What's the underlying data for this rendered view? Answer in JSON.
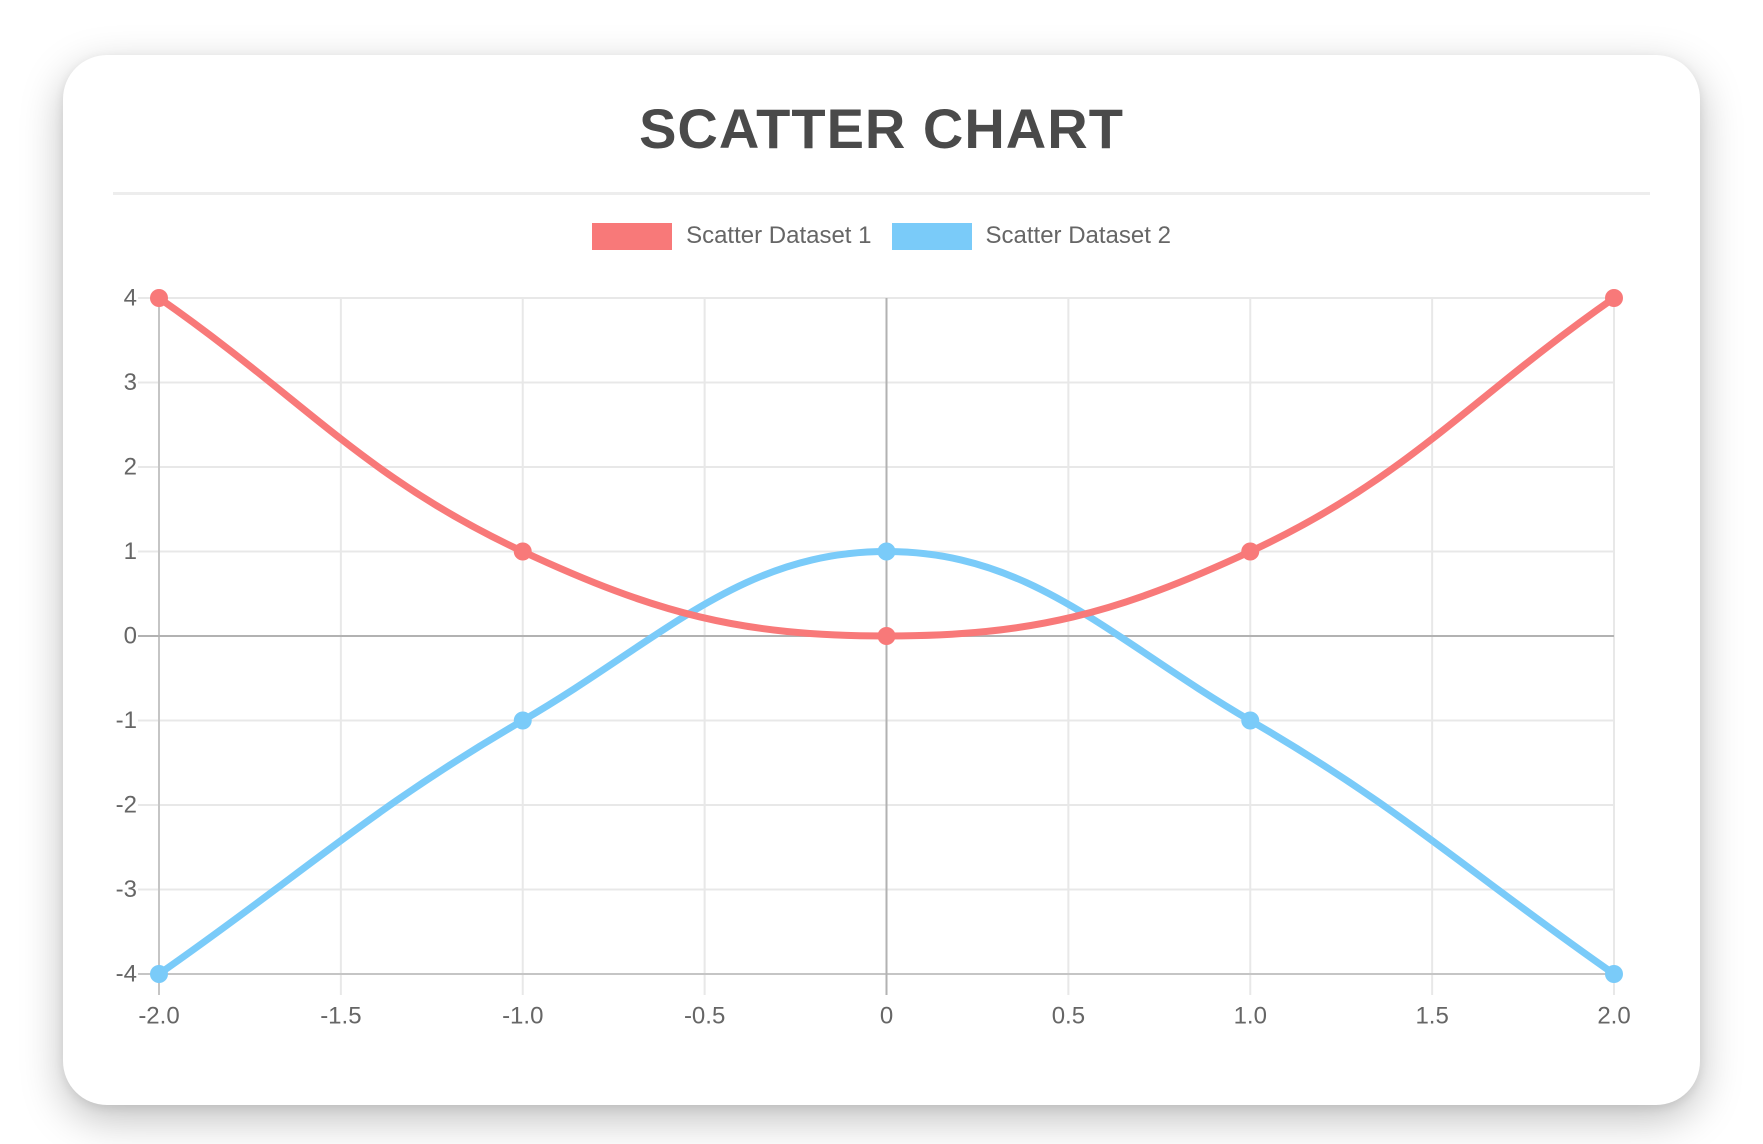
{
  "header": {
    "title": "SCATTER CHART"
  },
  "chart_data": {
    "type": "scatter",
    "title": "SCATTER CHART",
    "xlabel": "",
    "ylabel": "",
    "xlim": [
      -2,
      2
    ],
    "ylim": [
      -4,
      4
    ],
    "x_ticks": [
      "-2.0",
      "-1.5",
      "-1.0",
      "-0.5",
      "0",
      "0.5",
      "1.0",
      "1.5",
      "2.0"
    ],
    "x_tick_values": [
      -2,
      -1.5,
      -1,
      -0.5,
      0,
      0.5,
      1,
      1.5,
      2
    ],
    "y_ticks": [
      "4",
      "3",
      "2",
      "1",
      "0",
      "-1",
      "-2",
      "-3",
      "-4"
    ],
    "y_tick_values": [
      4,
      3,
      2,
      1,
      0,
      -1,
      -2,
      -3,
      -4
    ],
    "grid": true,
    "legend_position": "top",
    "line_tension": 0.4,
    "line_width": 7,
    "point_radius": 9,
    "colors": {
      "grid": "#e8e8e8",
      "zero_grid": "#b2b2b2",
      "axis_border": "#c5c5c5",
      "tick_text": "#666666",
      "title_text": "#4a4a4a",
      "legend_text": "#666666"
    },
    "series": [
      {
        "name": "Scatter Dataset 1",
        "color": "#f87979",
        "points": [
          {
            "x": -2,
            "y": 4
          },
          {
            "x": -1,
            "y": 1
          },
          {
            "x": 0,
            "y": 0
          },
          {
            "x": 1,
            "y": 1
          },
          {
            "x": 2,
            "y": 4
          }
        ]
      },
      {
        "name": "Scatter Dataset 2",
        "color": "#7acbf9",
        "points": [
          {
            "x": -2,
            "y": -4
          },
          {
            "x": -1,
            "y": -1
          },
          {
            "x": 0,
            "y": 1
          },
          {
            "x": 1,
            "y": -1
          },
          {
            "x": 2,
            "y": -4
          }
        ]
      }
    ]
  }
}
